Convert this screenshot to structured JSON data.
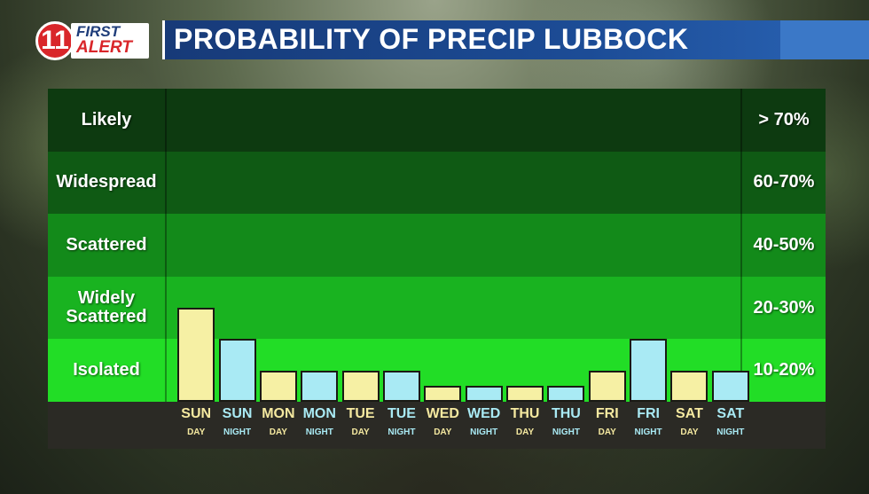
{
  "header": {
    "logo_number": "11",
    "logo_first": "FIRST",
    "logo_alert": "ALERT",
    "title": "PROBABILITY OF PRECIP LUBBOCK"
  },
  "colors": {
    "day_bar": "#f6f0a4",
    "night_bar": "#a9eaf4",
    "title_bar": "#1c4c96"
  },
  "bands": [
    {
      "label": "Likely",
      "range": "> 70%",
      "color": "#0d3a10"
    },
    {
      "label": "Widespread",
      "range": "60-70%",
      "color": "#0f5a14"
    },
    {
      "label": "Scattered",
      "range": "40-50%",
      "color": "#138a1a"
    },
    {
      "label": "Widely Scattered",
      "range": "20-30%",
      "color": "#19b320"
    },
    {
      "label": "Isolated",
      "range": "10-20%",
      "color": "#22dd26"
    }
  ],
  "chart_data": {
    "type": "bar",
    "title": "PROBABILITY OF PRECIP LUBBOCK",
    "categories": [
      {
        "day": "SUN",
        "period": "DAY"
      },
      {
        "day": "SUN",
        "period": "NIGHT"
      },
      {
        "day": "MON",
        "period": "DAY"
      },
      {
        "day": "MON",
        "period": "NIGHT"
      },
      {
        "day": "TUE",
        "period": "DAY"
      },
      {
        "day": "TUE",
        "period": "NIGHT"
      },
      {
        "day": "WED",
        "period": "DAY"
      },
      {
        "day": "WED",
        "period": "NIGHT"
      },
      {
        "day": "THU",
        "period": "DAY"
      },
      {
        "day": "THU",
        "period": "NIGHT"
      },
      {
        "day": "FRI",
        "period": "DAY"
      },
      {
        "day": "FRI",
        "period": "NIGHT"
      },
      {
        "day": "SAT",
        "period": "DAY"
      },
      {
        "day": "SAT",
        "period": "NIGHT"
      }
    ],
    "values": [
      1.5,
      1.0,
      0.5,
      0.5,
      0.5,
      0.5,
      0.25,
      0.25,
      0.25,
      0.25,
      0.5,
      1.0,
      0.5,
      0.5
    ],
    "ylim": [
      0,
      5
    ]
  }
}
